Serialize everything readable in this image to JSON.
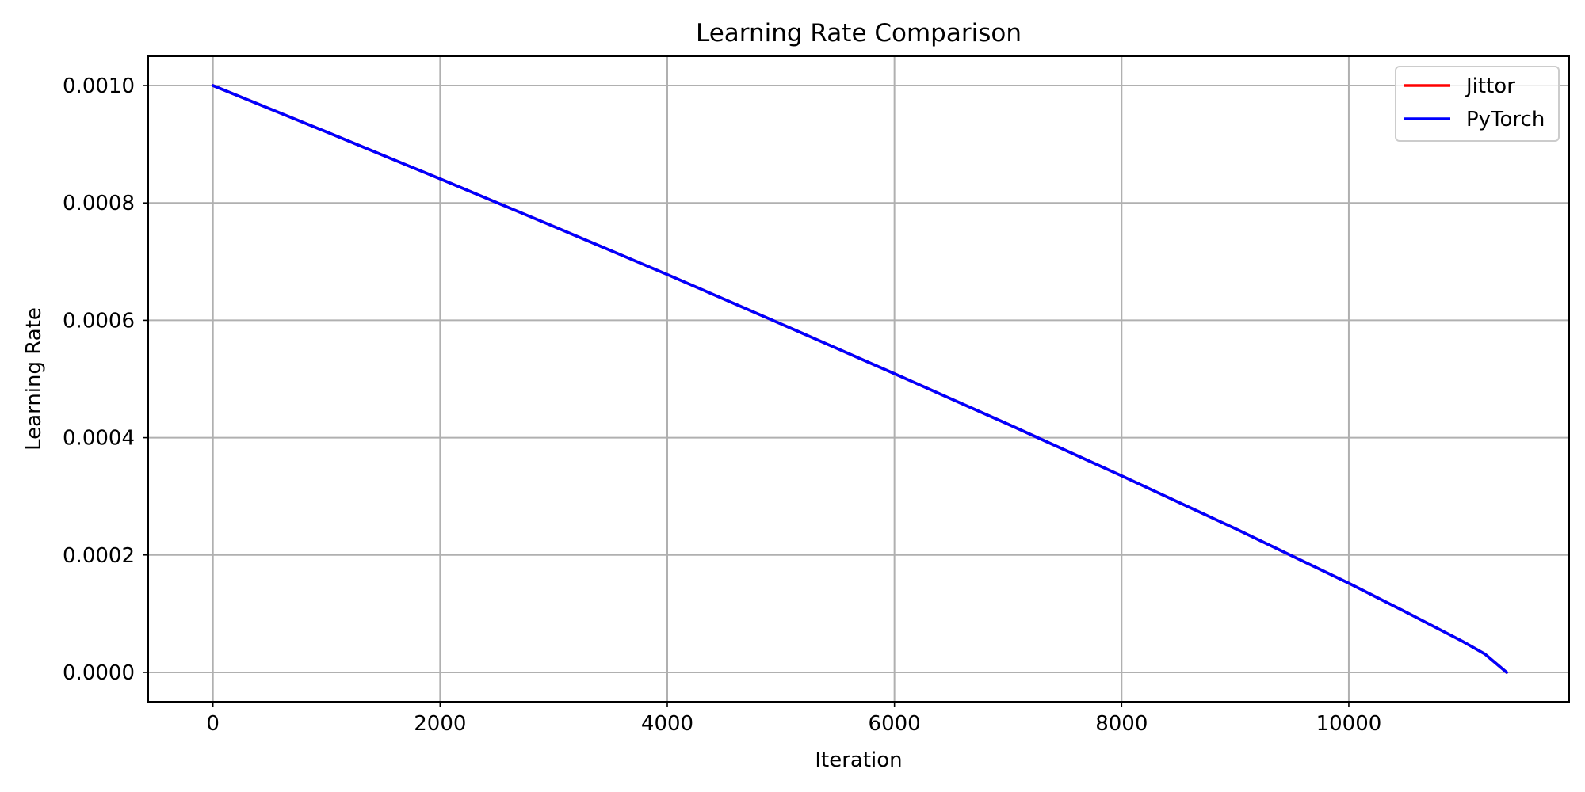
{
  "chart_data": {
    "type": "line",
    "title": "Learning Rate Comparison",
    "xlabel": "Iteration",
    "ylabel": "Learning Rate",
    "xlim": [
      -570,
      11940
    ],
    "ylim": [
      -5e-05,
      0.00105
    ],
    "x_ticks": [
      0,
      2000,
      4000,
      6000,
      8000,
      10000
    ],
    "y_ticks": [
      0.0,
      0.0002,
      0.0004,
      0.0006,
      0.0008,
      0.001
    ],
    "x_tick_labels": [
      "0",
      "2000",
      "4000",
      "6000",
      "8000",
      "10000"
    ],
    "y_tick_labels": [
      "0.0000",
      "0.0002",
      "0.0004",
      "0.0006",
      "0.0008",
      "0.0010"
    ],
    "grid": true,
    "legend_position": "top-right",
    "series": [
      {
        "name": "Jittor",
        "color": "#ff0000",
        "x": [
          0,
          1000,
          2000,
          3000,
          4000,
          5000,
          6000,
          7000,
          8000,
          9000,
          10000,
          10500,
          11000,
          11200,
          11390
        ],
        "y": [
          0.001,
          0.000921,
          0.000841,
          0.00076,
          0.000678,
          0.000594,
          0.000509,
          0.000423,
          0.000335,
          0.000245,
          0.000152,
          0.000103,
          5.3e-05,
          3.1e-05,
          0.0
        ]
      },
      {
        "name": "PyTorch",
        "color": "#0000ff",
        "x": [
          0,
          1000,
          2000,
          3000,
          4000,
          5000,
          6000,
          7000,
          8000,
          9000,
          10000,
          10500,
          11000,
          11200,
          11390
        ],
        "y": [
          0.001,
          0.000921,
          0.000841,
          0.00076,
          0.000678,
          0.000594,
          0.000509,
          0.000423,
          0.000335,
          0.000245,
          0.000152,
          0.000103,
          5.3e-05,
          3.1e-05,
          0.0
        ]
      }
    ]
  }
}
